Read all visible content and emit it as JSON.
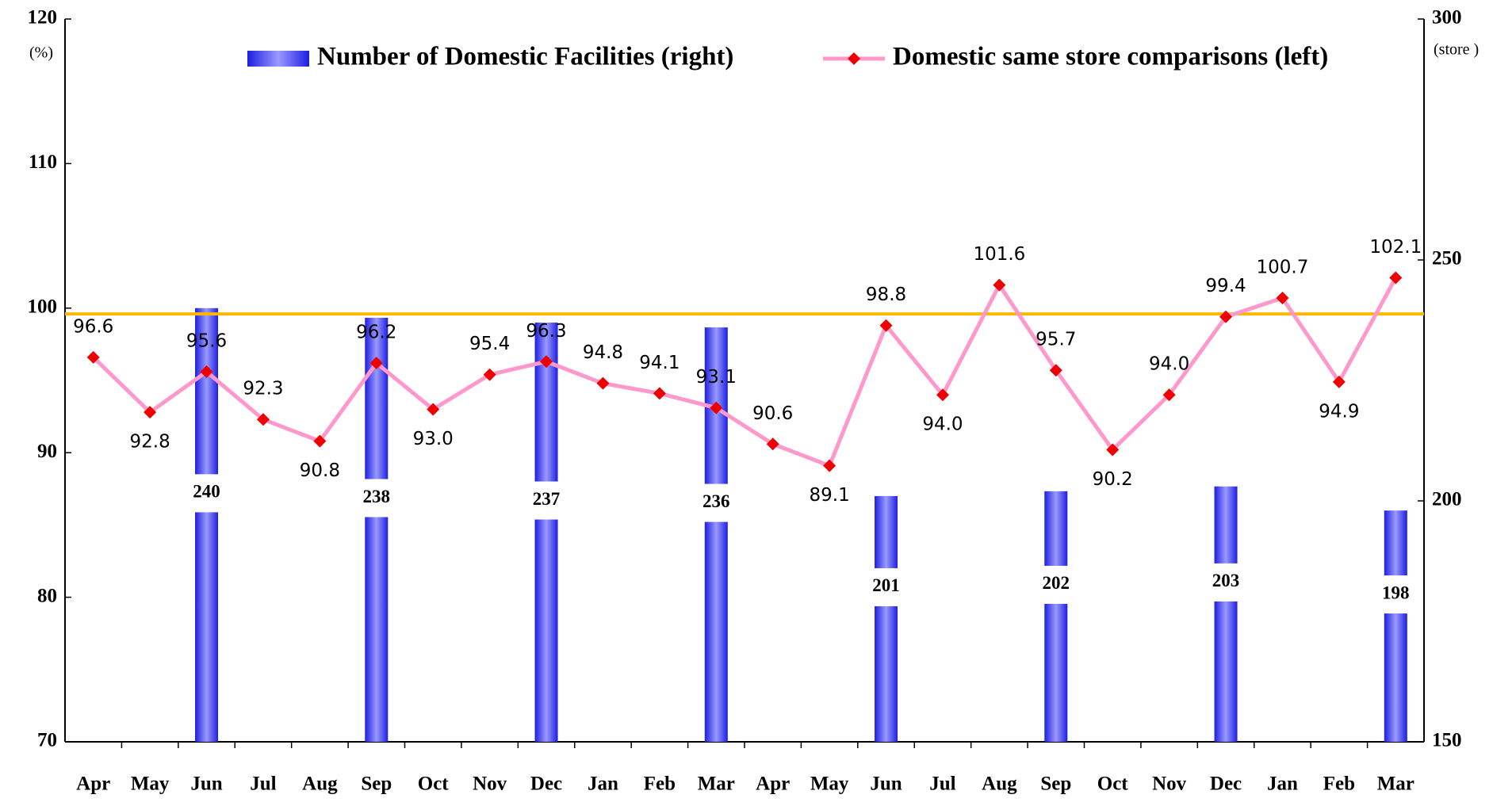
{
  "chart_data": {
    "type": "bar_line",
    "y_unit": "(%)",
    "y2_unit": "(store )",
    "categories": [
      "Apr",
      "May",
      "Jun",
      "Jul",
      "Aug",
      "Sep",
      "Oct",
      "Nov",
      "Dec",
      "Jan",
      "Feb",
      "Mar",
      "Apr",
      "May",
      "Jun",
      "Jul",
      "Aug",
      "Sep",
      "Oct",
      "Nov",
      "Dec",
      "Jan",
      "Feb",
      "Mar"
    ],
    "series": [
      {
        "name": "Number of Domestic Facilities (right)",
        "type": "bar",
        "axis": "y2",
        "color": "#2b2bea",
        "values": [
          null,
          null,
          240,
          null,
          null,
          238,
          null,
          null,
          237,
          null,
          null,
          236,
          null,
          null,
          201,
          null,
          null,
          202,
          null,
          null,
          203,
          null,
          null,
          198
        ]
      },
      {
        "name": "Domestic same store comparisons (left)",
        "type": "line",
        "axis": "y",
        "color": "#ff99cc",
        "marker_color": "#ee0000",
        "values": [
          96.6,
          92.8,
          95.6,
          92.3,
          90.8,
          96.2,
          93.0,
          95.4,
          96.3,
          94.8,
          94.1,
          93.1,
          90.6,
          89.1,
          98.8,
          94.0,
          101.6,
          95.7,
          90.2,
          94.0,
          99.4,
          100.7,
          94.9,
          102.1
        ],
        "value_labels": [
          "96.6",
          "92.8",
          "95.6",
          "92.3",
          "90.8",
          "96.2",
          "93.0",
          "95.4",
          "96.3",
          "94.8",
          "94.1",
          "93.1",
          "90.6",
          "89.1",
          "98.8",
          "94.0",
          "101.6",
          "95.7",
          "90.2",
          "94.0",
          "99.4",
          "100.7",
          "94.9",
          "102.1"
        ]
      }
    ],
    "reference_line": {
      "value": 99.6,
      "axis": "y",
      "color": "#ffb800"
    },
    "ylim": [
      70,
      120
    ],
    "yticks": [
      70,
      80,
      90,
      100,
      110,
      120
    ],
    "y2lim": [
      150,
      300
    ],
    "y2ticks": [
      150,
      200,
      250,
      300
    ],
    "legend": "top"
  }
}
